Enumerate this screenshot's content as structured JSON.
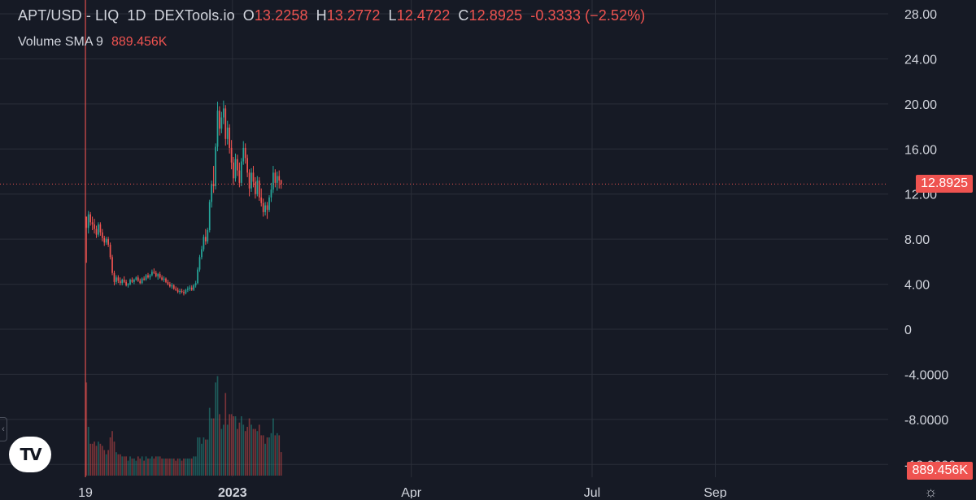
{
  "header": {
    "symbol": "APT/USD - LIQ",
    "interval": "1D",
    "source": "DEXTools.io",
    "o_label": "O",
    "o_value": "13.2258",
    "h_label": "H",
    "h_value": "13.2772",
    "l_label": "L",
    "l_value": "12.4722",
    "c_label": "C",
    "c_value": "12.8925",
    "change": "-0.3333 (−2.52%)"
  },
  "volume_indicator": {
    "label": "Volume SMA 9",
    "value": "889.456K"
  },
  "price_tag": "12.8925",
  "volume_tag": "889.456K",
  "colors": {
    "background": "#161a25",
    "up": "#26a69a",
    "down": "#ef5350",
    "grid": "#2a2e39",
    "text": "#d1d4dc"
  },
  "chart_data": {
    "type": "candlestick",
    "symbol": "APT/USD",
    "interval": "1D",
    "yticks": [
      "28.00",
      "24.00",
      "20.00",
      "16.00",
      "12.00",
      "8.00",
      "4.00",
      "0",
      "-4.0000",
      "-8.0000",
      "-12.0000"
    ],
    "y_tick_values": [
      28,
      24,
      20,
      16,
      12,
      8,
      4,
      0,
      -4,
      -8,
      -12
    ],
    "ylim": [
      -12.5,
      29.5
    ],
    "xticks": [
      {
        "label": "19",
        "date": "2022-10-19"
      },
      {
        "label": "2023",
        "date": "2023-01-01"
      },
      {
        "label": "Apr",
        "date": "2023-04-01"
      },
      {
        "label": "Jul",
        "date": "2023-07-01"
      },
      {
        "label": "Sep",
        "date": "2023-09-01"
      }
    ],
    "xlim": [
      "2022-09-06",
      "2023-11-27"
    ],
    "last_price": 12.8925,
    "candles_start": "2022-10-19",
    "ohlc": [
      [
        10.0,
        10.0,
        5.9,
        9.0
      ],
      [
        9.0,
        10.5,
        8.5,
        10.2
      ],
      [
        10.2,
        10.4,
        9.2,
        9.5
      ],
      [
        9.5,
        10.0,
        8.8,
        9.3
      ],
      [
        9.3,
        9.8,
        8.5,
        8.9
      ],
      [
        8.9,
        9.2,
        8.1,
        8.4
      ],
      [
        8.4,
        9.5,
        8.2,
        9.3
      ],
      [
        9.3,
        9.5,
        8.3,
        8.6
      ],
      [
        8.6,
        8.9,
        7.8,
        8.1
      ],
      [
        8.1,
        8.3,
        7.4,
        7.7
      ],
      [
        7.7,
        8.2,
        7.5,
        8.0
      ],
      [
        8.0,
        8.2,
        7.3,
        7.5
      ],
      [
        7.5,
        7.7,
        6.2,
        6.4
      ],
      [
        6.4,
        6.6,
        4.8,
        5.0
      ],
      [
        5.0,
        5.2,
        3.9,
        4.2
      ],
      [
        4.2,
        4.8,
        4.0,
        4.6
      ],
      [
        4.6,
        4.8,
        4.1,
        4.3
      ],
      [
        4.3,
        4.6,
        3.9,
        4.1
      ],
      [
        4.1,
        4.5,
        3.9,
        4.4
      ],
      [
        4.4,
        4.7,
        4.1,
        4.2
      ],
      [
        4.2,
        4.4,
        3.8,
        3.9
      ],
      [
        3.9,
        4.1,
        3.7,
        4.0
      ],
      [
        4.0,
        4.5,
        3.9,
        4.4
      ],
      [
        4.4,
        4.6,
        4.1,
        4.2
      ],
      [
        4.2,
        4.5,
        4.0,
        4.4
      ],
      [
        4.4,
        4.7,
        4.3,
        4.6
      ],
      [
        4.6,
        4.8,
        4.2,
        4.3
      ],
      [
        4.3,
        4.5,
        4.0,
        4.1
      ],
      [
        4.1,
        4.6,
        4.0,
        4.5
      ],
      [
        4.5,
        4.7,
        4.3,
        4.4
      ],
      [
        4.4,
        4.9,
        4.3,
        4.8
      ],
      [
        4.8,
        5.0,
        4.5,
        4.6
      ],
      [
        4.6,
        4.9,
        4.4,
        4.8
      ],
      [
        4.8,
        5.3,
        4.7,
        5.1
      ],
      [
        5.1,
        5.4,
        4.9,
        5.0
      ],
      [
        5.0,
        5.2,
        4.6,
        4.7
      ],
      [
        4.7,
        5.0,
        4.4,
        4.9
      ],
      [
        4.9,
        5.1,
        4.5,
        4.6
      ],
      [
        4.6,
        4.8,
        4.3,
        4.4
      ],
      [
        4.4,
        4.7,
        4.2,
        4.5
      ],
      [
        4.5,
        4.6,
        4.1,
        4.2
      ],
      [
        4.2,
        4.4,
        3.9,
        4.0
      ],
      [
        4.0,
        4.2,
        3.7,
        3.8
      ],
      [
        3.8,
        4.1,
        3.6,
        3.9
      ],
      [
        3.9,
        4.0,
        3.5,
        3.6
      ],
      [
        3.6,
        3.8,
        3.4,
        3.5
      ],
      [
        3.5,
        3.7,
        3.2,
        3.3
      ],
      [
        3.3,
        3.6,
        3.1,
        3.4
      ],
      [
        3.4,
        3.6,
        3.2,
        3.3
      ],
      [
        3.3,
        3.5,
        3.0,
        3.2
      ],
      [
        3.2,
        3.6,
        3.1,
        3.5
      ],
      [
        3.5,
        3.8,
        3.3,
        3.6
      ],
      [
        3.6,
        3.9,
        3.4,
        3.7
      ],
      [
        3.7,
        3.9,
        3.4,
        3.5
      ],
      [
        3.5,
        4.0,
        3.4,
        3.9
      ],
      [
        3.9,
        4.3,
        3.7,
        4.1
      ],
      [
        4.1,
        5.5,
        4.0,
        5.3
      ],
      [
        5.3,
        6.6,
        5.1,
        6.4
      ],
      [
        6.4,
        7.4,
        6.2,
        7.1
      ],
      [
        7.1,
        8.4,
        6.9,
        8.2
      ],
      [
        8.2,
        8.9,
        7.5,
        7.8
      ],
      [
        7.8,
        9.0,
        7.6,
        8.8
      ],
      [
        8.8,
        11.5,
        8.6,
        11.3
      ],
      [
        11.3,
        13.2,
        10.8,
        12.9
      ],
      [
        12.9,
        14.5,
        12.1,
        12.7
      ],
      [
        12.7,
        16.5,
        12.4,
        16.2
      ],
      [
        16.2,
        20.2,
        15.8,
        19.4
      ],
      [
        19.4,
        19.8,
        17.2,
        17.8
      ],
      [
        17.8,
        19.3,
        17.4,
        18.8
      ],
      [
        18.8,
        20.3,
        18.2,
        19.6
      ],
      [
        19.6,
        19.9,
        16.3,
        16.9
      ],
      [
        16.9,
        18.5,
        16.4,
        17.9
      ],
      [
        17.9,
        18.2,
        15.6,
        16.1
      ],
      [
        16.1,
        16.8,
        14.2,
        14.8
      ],
      [
        14.8,
        15.3,
        12.8,
        13.4
      ],
      [
        13.4,
        15.6,
        13.1,
        15.1
      ],
      [
        15.1,
        15.5,
        13.6,
        14.1
      ],
      [
        14.1,
        14.8,
        12.6,
        13.0
      ],
      [
        13.0,
        15.2,
        12.7,
        14.9
      ],
      [
        14.9,
        16.7,
        14.6,
        16.1
      ],
      [
        16.1,
        16.5,
        14.7,
        15.2
      ],
      [
        15.2,
        15.5,
        13.5,
        13.9
      ],
      [
        13.9,
        14.2,
        11.8,
        12.5
      ],
      [
        12.5,
        14.3,
        12.2,
        13.9
      ],
      [
        13.9,
        14.5,
        12.6,
        13.1
      ],
      [
        13.1,
        13.5,
        11.6,
        12.0
      ],
      [
        12.0,
        13.6,
        11.8,
        13.2
      ],
      [
        13.2,
        13.5,
        11.4,
        11.7
      ],
      [
        11.7,
        12.5,
        10.9,
        11.2
      ],
      [
        11.2,
        11.6,
        10.0,
        10.4
      ],
      [
        10.4,
        11.3,
        10.1,
        11.0
      ],
      [
        11.0,
        11.3,
        9.8,
        10.6
      ],
      [
        10.6,
        11.9,
        10.4,
        11.7
      ],
      [
        11.7,
        13.0,
        11.3,
        12.4
      ],
      [
        12.4,
        14.5,
        12.1,
        13.9
      ],
      [
        13.9,
        14.2,
        12.6,
        13.0
      ],
      [
        13.0,
        14.0,
        12.3,
        13.6
      ],
      [
        13.6,
        14.1,
        12.5,
        13.2
      ],
      [
        13.2258,
        13.2772,
        12.4722,
        12.8925
      ]
    ]
  }
}
